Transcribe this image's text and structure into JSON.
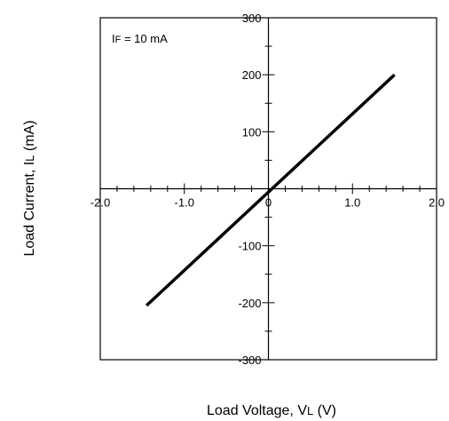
{
  "chart_data": {
    "type": "line",
    "title": "",
    "annotation": {
      "prefix": "I",
      "sub": "F",
      "rest": " = 10 mA"
    },
    "xlabel": {
      "prefix": "Load Voltage, V",
      "sub": "L",
      "rest": " (V)"
    },
    "ylabel": {
      "prefix": "Load Current, I",
      "sub": "L",
      "rest": " (mA)"
    },
    "xlim": [
      -2.0,
      2.0
    ],
    "ylim": [
      -300,
      300
    ],
    "x_ticks": [
      "-2.0",
      "-1.0",
      "0",
      "1.0",
      "2.0"
    ],
    "y_ticks": [
      "300",
      "200",
      "100",
      "-100",
      "-200",
      "-300"
    ],
    "grid": false,
    "series": [
      {
        "x": [
          -1.45,
          1.5
        ],
        "y": [
          -205,
          200
        ]
      }
    ]
  }
}
